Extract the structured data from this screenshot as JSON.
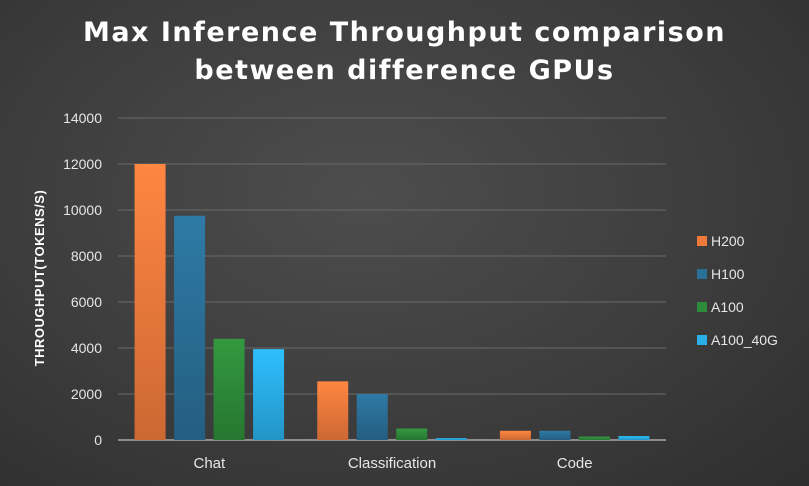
{
  "chart_data": {
    "type": "bar",
    "title_lines": [
      "Max Inference Throughput comparison",
      "between difference GPUs"
    ],
    "xlabel": "",
    "ylabel": "THROUGHPUT(TOKENS/S)",
    "ylim": [
      0,
      14000
    ],
    "yticks": [
      "0",
      "2000",
      "4000",
      "6000",
      "8000",
      "10000",
      "12000",
      "14000"
    ],
    "grid": true,
    "legend_position": "right",
    "categories": [
      "Chat",
      "Classification",
      "Code"
    ],
    "series": [
      {
        "name": "H200",
        "color": "#f07a3c",
        "values": [
          12000,
          2550,
          400
        ]
      },
      {
        "name": "H100",
        "color": "#2a6f97",
        "values": [
          9750,
          2000,
          400
        ]
      },
      {
        "name": "A100",
        "color": "#2e8b3a",
        "values": [
          4400,
          500,
          150
        ]
      },
      {
        "name": "A100_40G",
        "color": "#29aee8",
        "values": [
          3950,
          80,
          170
        ]
      }
    ]
  }
}
